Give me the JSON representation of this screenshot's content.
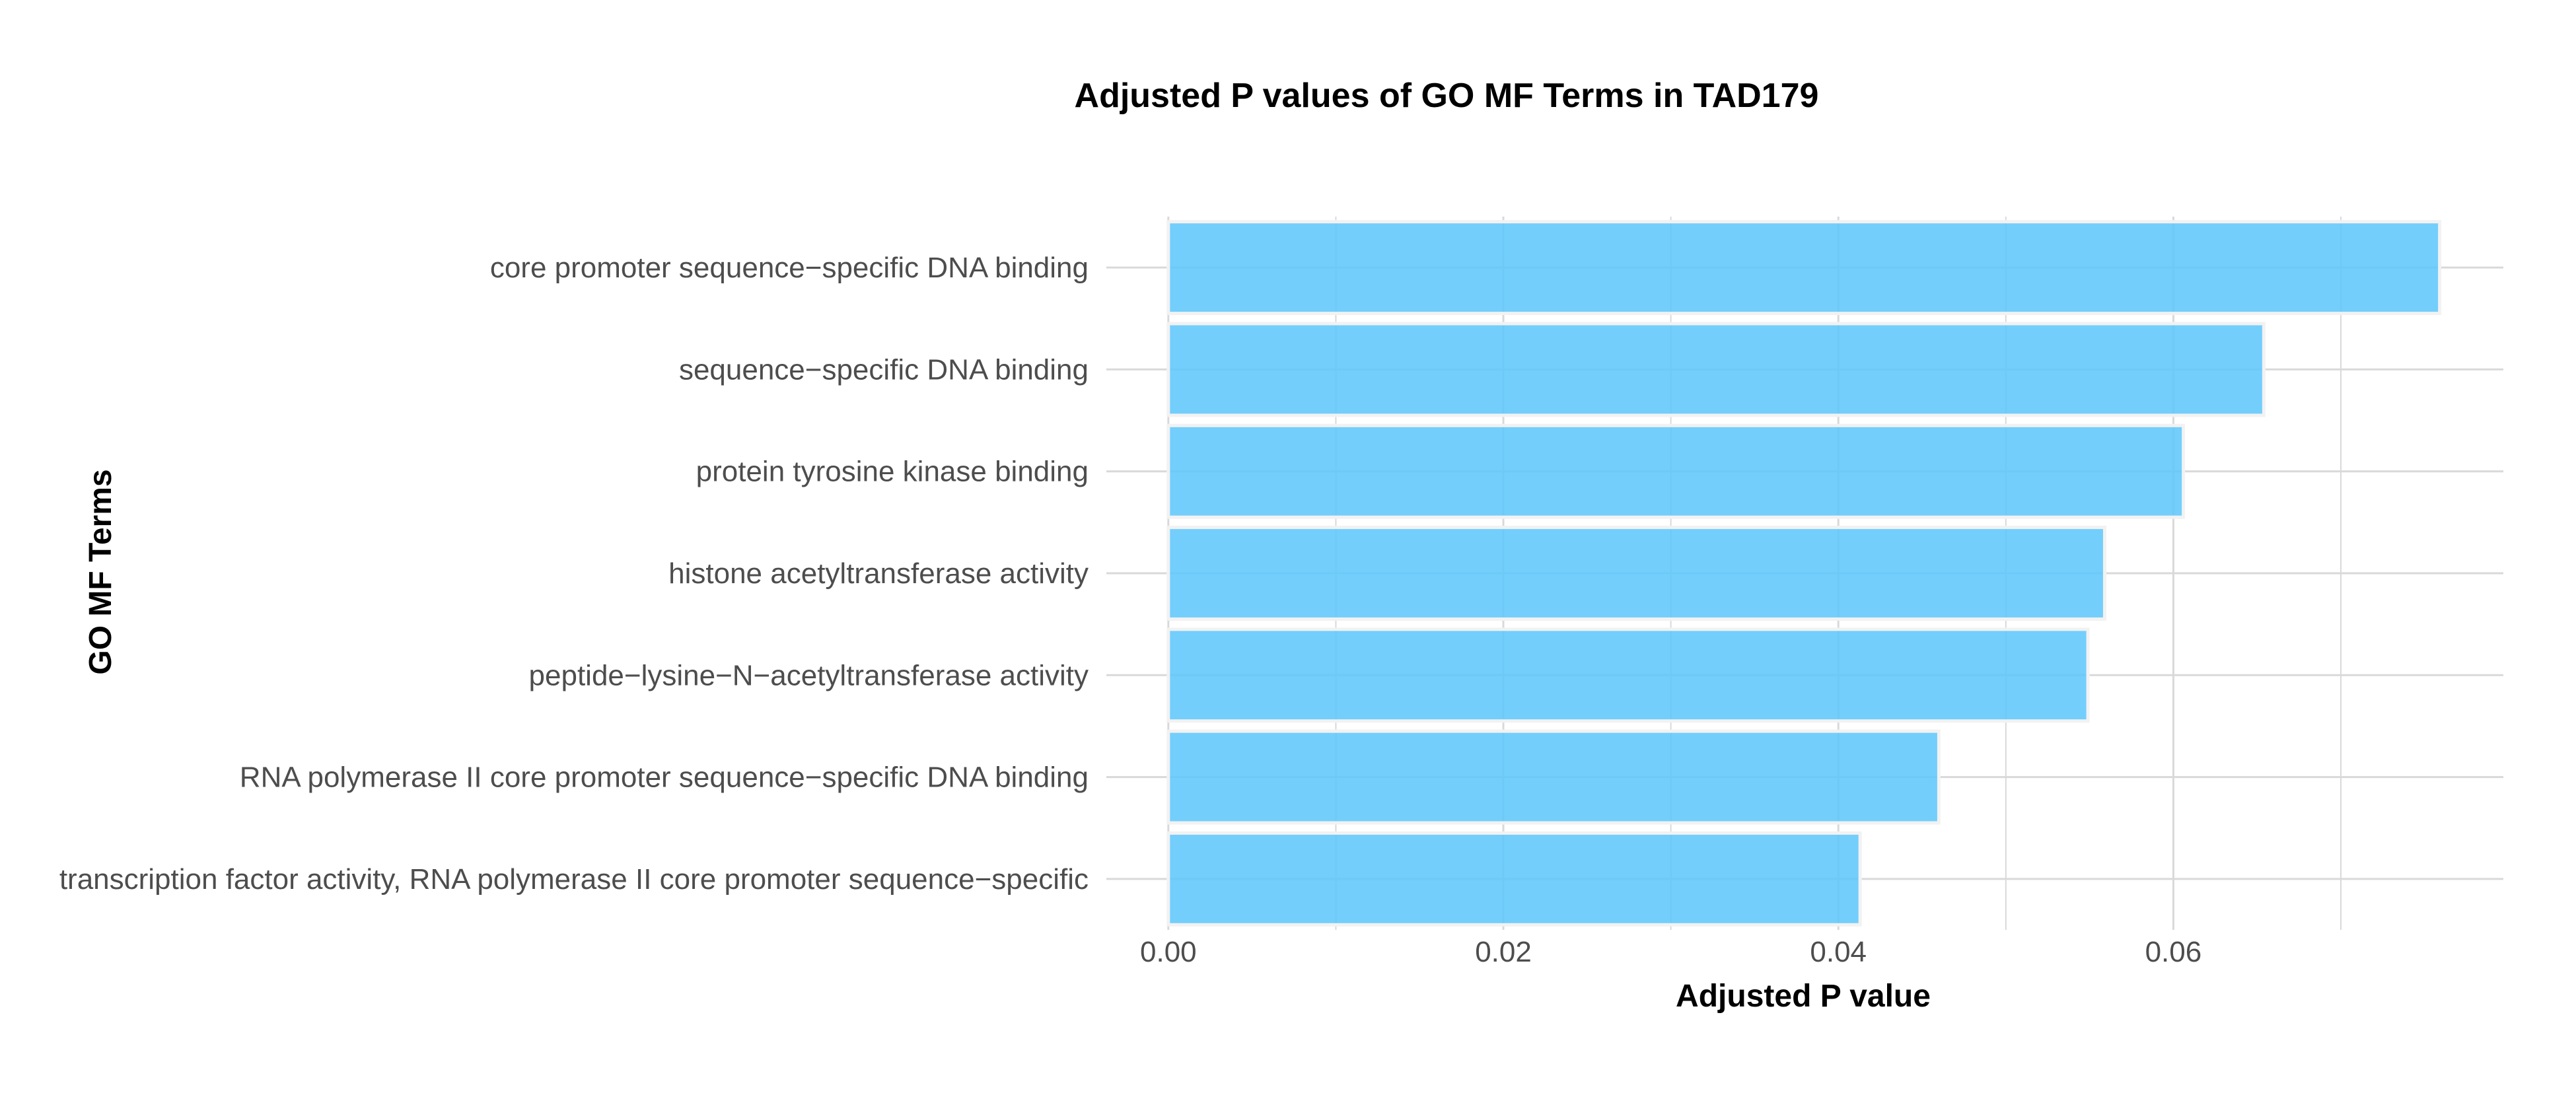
{
  "chart_data": {
    "type": "bar",
    "orientation": "horizontal",
    "title": "Adjusted P values of GO MF Terms in TAD179",
    "xlabel": "Adjusted P value",
    "ylabel": "GO MF Terms",
    "categories": [
      "core promoter sequence−specific DNA binding",
      "sequence−specific DNA binding",
      "protein tyrosine kinase binding",
      "histone acetyltransferase activity",
      "peptide−lysine−N−acetyltransferase activity",
      "RNA polymerase II core promoter sequence−specific DNA binding",
      "transcription factor activity, RNA polymerase II core promoter sequence−specific"
    ],
    "values": [
      0.0759,
      0.0654,
      0.0606,
      0.0559,
      0.0549,
      0.046,
      0.0413
    ],
    "xticks": [
      0.0,
      0.02,
      0.04,
      0.06
    ],
    "xtick_labels": [
      "0.00",
      "0.02",
      "0.04",
      "0.06"
    ],
    "xlim": [
      -0.0037,
      0.0797
    ],
    "grid": true,
    "legend": "none",
    "bar_color": "#5bc6fb",
    "bar_border_color": "#f2f2f2",
    "grid_color": "#d9d9d9"
  }
}
